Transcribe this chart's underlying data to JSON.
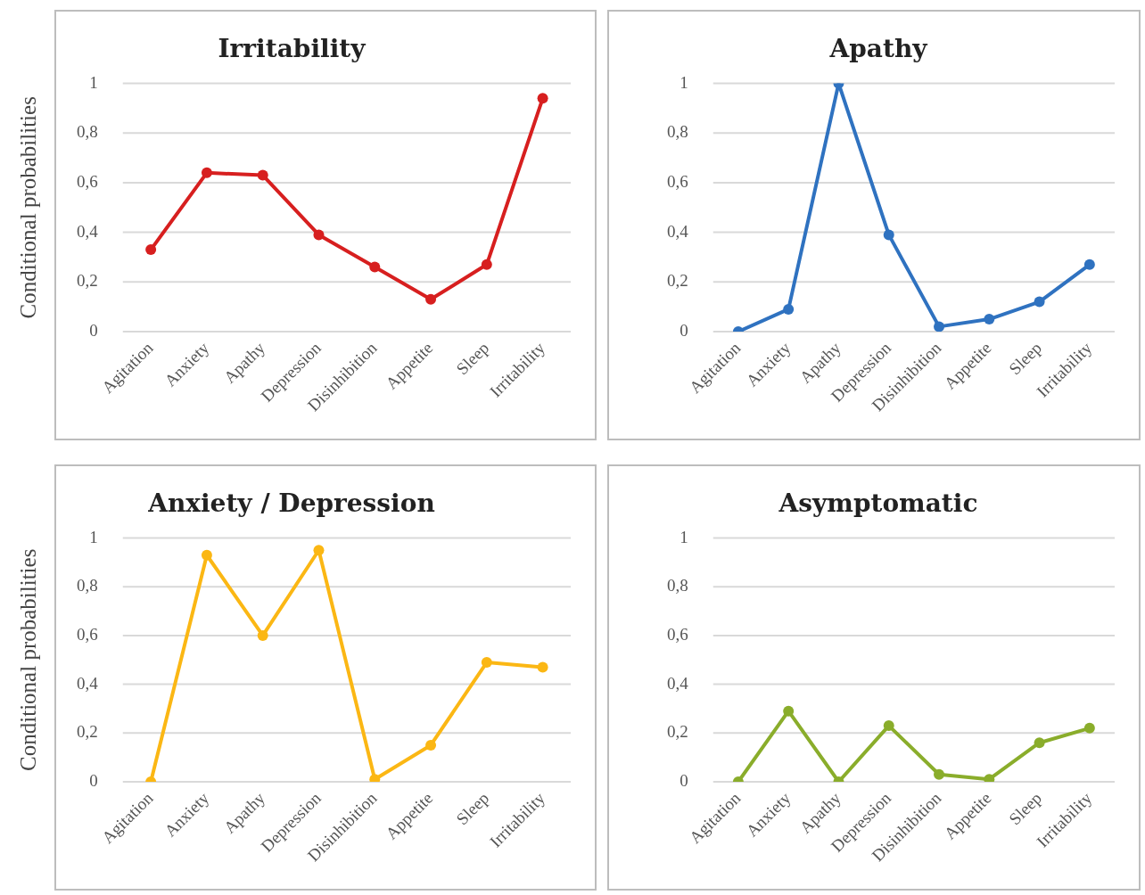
{
  "chart_data": [
    {
      "type": "line",
      "title": "Irritability",
      "ylabel": "Conditional probabilities",
      "categories": [
        "Agitation",
        "Anxiety",
        "Apathy",
        "Depression",
        "Disinhibition",
        "Appetite",
        "Sleep",
        "Irritability"
      ],
      "series": [
        {
          "color": "#d71f1f",
          "values": [
            0.33,
            0.64,
            0.63,
            0.39,
            0.26,
            0.13,
            0.27,
            0.94
          ]
        }
      ],
      "ylim": [
        0,
        1
      ],
      "yticks": [
        {
          "value": 0,
          "label": "0"
        },
        {
          "value": 0.2,
          "label": "0,2"
        },
        {
          "value": 0.4,
          "label": "0,4"
        },
        {
          "value": 0.6,
          "label": "0,6"
        },
        {
          "value": 0.8,
          "label": "0,8"
        },
        {
          "value": 1,
          "label": "1"
        }
      ],
      "grid": "y",
      "marker": "circle",
      "legend": false
    },
    {
      "type": "line",
      "title": "Apathy",
      "categories": [
        "Agitation",
        "Anxiety",
        "Apathy",
        "Depression",
        "Disinhibition",
        "Appetite",
        "Sleep",
        "Irritability"
      ],
      "series": [
        {
          "color": "#2f72c0",
          "values": [
            0,
            0.09,
            1,
            0.39,
            0.02,
            0.05,
            0.12,
            0.27
          ]
        }
      ],
      "ylim": [
        0,
        1
      ],
      "yticks": [
        {
          "value": 0,
          "label": "0"
        },
        {
          "value": 0.2,
          "label": "0,2"
        },
        {
          "value": 0.4,
          "label": "0,4"
        },
        {
          "value": 0.6,
          "label": "0,6"
        },
        {
          "value": 0.8,
          "label": "0,8"
        },
        {
          "value": 1,
          "label": "1"
        }
      ],
      "grid": "y",
      "marker": "circle",
      "legend": false
    },
    {
      "type": "line",
      "title": "Anxiety / Depression",
      "ylabel": "Conditional probabilities",
      "categories": [
        "Agitation",
        "Anxiety",
        "Apathy",
        "Depression",
        "Disinhibition",
        "Appetite",
        "Sleep",
        "Irritability"
      ],
      "series": [
        {
          "color": "#fbb714",
          "values": [
            0,
            0.93,
            0.6,
            0.95,
            0.01,
            0.15,
            0.49,
            0.47
          ]
        }
      ],
      "ylim": [
        0,
        1
      ],
      "yticks": [
        {
          "value": 0,
          "label": "0"
        },
        {
          "value": 0.2,
          "label": "0,2"
        },
        {
          "value": 0.4,
          "label": "0,4"
        },
        {
          "value": 0.6,
          "label": "0,6"
        },
        {
          "value": 0.8,
          "label": "0,8"
        },
        {
          "value": 1,
          "label": "1"
        }
      ],
      "grid": "y",
      "marker": "circle",
      "legend": false
    },
    {
      "type": "line",
      "title": "Asymptomatic",
      "categories": [
        "Agitation",
        "Anxiety",
        "Apathy",
        "Depression",
        "Disinhibition",
        "Appetite",
        "Sleep",
        "Irritability"
      ],
      "series": [
        {
          "color": "#8aad2b",
          "values": [
            0,
            0.29,
            0,
            0.23,
            0.03,
            0.01,
            0.16,
            0.22
          ]
        }
      ],
      "ylim": [
        0,
        1
      ],
      "yticks": [
        {
          "value": 0,
          "label": "0"
        },
        {
          "value": 0.2,
          "label": "0,2"
        },
        {
          "value": 0.4,
          "label": "0,4"
        },
        {
          "value": 0.6,
          "label": "0,6"
        },
        {
          "value": 0.8,
          "label": "0,8"
        },
        {
          "value": 1,
          "label": "1"
        }
      ],
      "grid": "y",
      "marker": "circle",
      "legend": false
    }
  ]
}
